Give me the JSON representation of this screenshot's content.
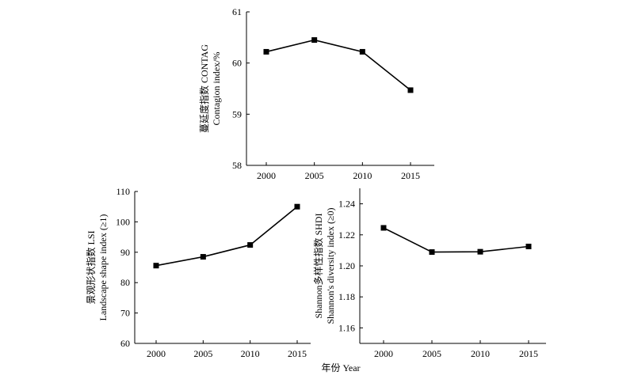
{
  "figure": {
    "xlabel": "年份 Year"
  },
  "chart_data": [
    {
      "type": "line",
      "id": "contag",
      "x": [
        2000,
        2005,
        2010,
        2015
      ],
      "values": [
        60.22,
        60.45,
        60.22,
        59.47
      ],
      "xticks": [
        "2000",
        "2005",
        "2010",
        "2015"
      ],
      "yticks": [
        58,
        59,
        60,
        61
      ],
      "ytick_labels": [
        "58",
        "59",
        "60",
        "61"
      ],
      "ylim": [
        58,
        61
      ],
      "ylabel": [
        "蔓延度指数 CONTAG",
        "Contagion index/%"
      ],
      "grid": false
    },
    {
      "type": "line",
      "id": "lsi",
      "x": [
        2000,
        2005,
        2010,
        2015
      ],
      "values": [
        85.6,
        88.5,
        92.4,
        105.0
      ],
      "xticks": [
        "2000",
        "2005",
        "2010",
        "2015"
      ],
      "yticks": [
        60,
        70,
        80,
        90,
        100,
        110
      ],
      "ytick_labels": [
        "60",
        "70",
        "80",
        "90",
        "100",
        "110"
      ],
      "ylim": [
        60,
        110
      ],
      "ylabel": [
        "景观形状指数 LSI",
        "Landscape shape index (≥1)"
      ],
      "grid": false
    },
    {
      "type": "line",
      "id": "shdi",
      "x": [
        2000,
        2005,
        2010,
        2015
      ],
      "values": [
        1.2245,
        1.2089,
        1.2091,
        1.2125
      ],
      "xticks": [
        "2000",
        "2005",
        "2010",
        "2015"
      ],
      "yticks": [
        1.16,
        1.18,
        1.2,
        1.22,
        1.24
      ],
      "ytick_labels": [
        "1.16",
        "1.18",
        "1.20",
        "1.22",
        "1.24"
      ],
      "ylim": [
        1.15,
        1.25
      ],
      "ylabel": [
        "Shannon多样性指数 SHDI",
        "Shannon's diversity index (≥0)"
      ],
      "grid": false
    }
  ]
}
